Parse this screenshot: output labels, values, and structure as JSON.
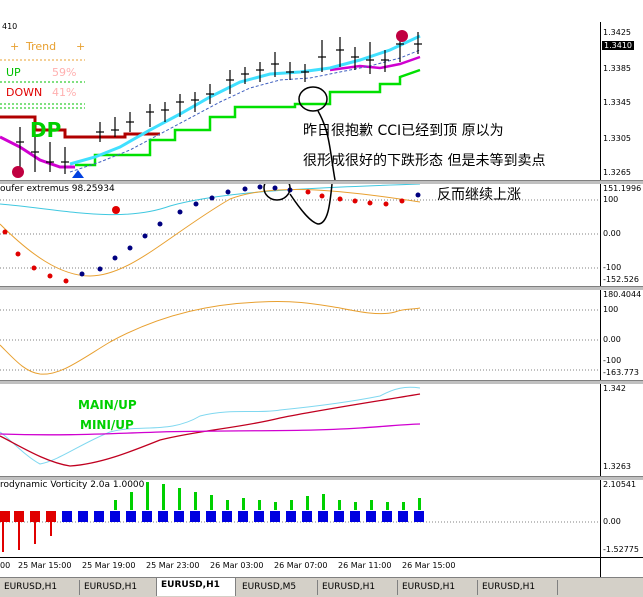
{
  "main": {
    "corner_label": "410",
    "trend_label": "Trend",
    "trend_plus_left": "+",
    "trend_plus_right": "+",
    "up_label": "UP",
    "up_pct": "59%",
    "down_label": "DOWN",
    "down_pct": "41%",
    "dp_label": "DP",
    "axis_ticks": [
      "1.3425",
      "1.3385",
      "1.3345",
      "1.3305",
      "1.3265"
    ],
    "current_price": "1.3410",
    "annotation_line1": "昨日很抱歉 CCI已经到顶 原以为",
    "annotation_line2": "很形成很好的下跌形态 但是未等到卖点",
    "annotation_line3": "反而继续上涨"
  },
  "pane2": {
    "title": "oufer extremus 98.25934",
    "axis_ticks": [
      "151.1996",
      "100",
      "0.00",
      "-100",
      "-152.526"
    ]
  },
  "pane3": {
    "axis_ticks": [
      "180.4044",
      "100",
      "0.00",
      "-100",
      "-163.773"
    ]
  },
  "pane4": {
    "main_up": "MAIN/UP",
    "mini_up": "MINI/UP",
    "axis_ticks": [
      "1.342",
      "1.3263"
    ]
  },
  "pane5": {
    "title": "rodynamic Vorticity 2.0a 1.0000",
    "axis_ticks": [
      "2.10541",
      "0.00",
      "-1.52775"
    ]
  },
  "time_axis": [
    "00",
    "25 Mar 15:00",
    "25 Mar 19:00",
    "25 Mar 23:00",
    "26 Mar 03:00",
    "26 Mar 07:00",
    "26 Mar 11:00",
    "26 Mar 15:00"
  ],
  "tabs": [
    "EURUSD,H1",
    "EURUSD,H1",
    "EURUSD,H1",
    "EURUSD,M5",
    "EURUSD,H1",
    "EURUSD,H1",
    "EURUSD,H1"
  ],
  "active_tab_index": 2,
  "colors": {
    "cyan_line": "#40e0ff",
    "green_line": "#00e000",
    "magenta_line": "#d000d0",
    "red_step": "#b00000",
    "orange": "#e8a030",
    "bar_blue": "#0000e0",
    "bar_red": "#e00000",
    "bar_green": "#00d000"
  }
}
